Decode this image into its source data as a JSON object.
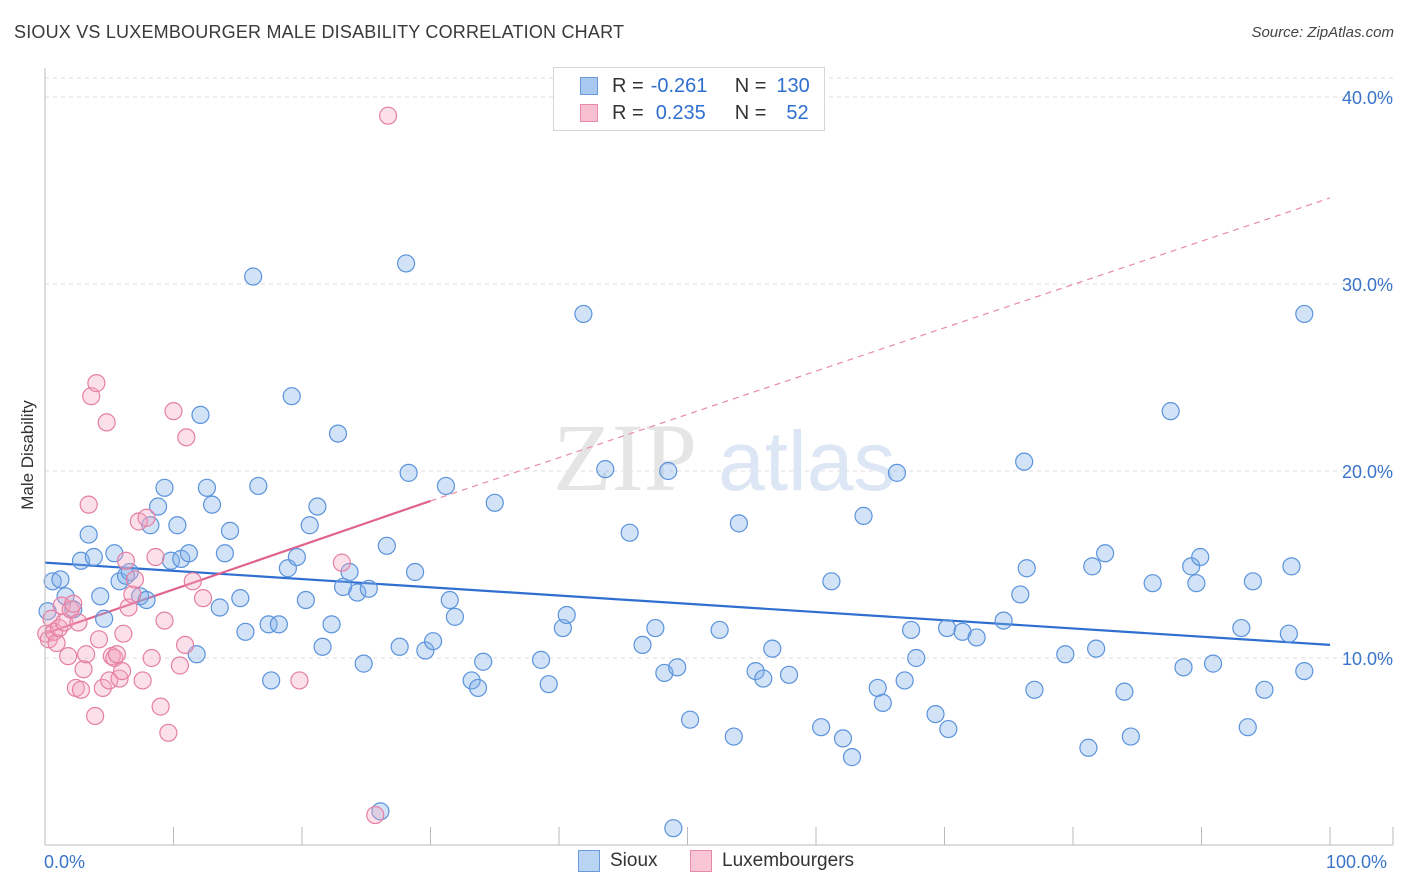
{
  "title": "SIOUX VS LUXEMBOURGER MALE DISABILITY CORRELATION CHART",
  "source": "Source: ZipAtlas.com",
  "watermark": {
    "zip": "ZIP",
    "atlas": "atlas"
  },
  "legend": {
    "rows": [
      {
        "r_label": "R =",
        "r_value": "-0.261",
        "n_label": "N =",
        "n_value": "130",
        "color": "#a9c8f0",
        "border": "#6a9bd8"
      },
      {
        "r_label": "R =",
        "r_value": "0.235",
        "n_label": "N =",
        "n_value": "52",
        "color": "#f7bfd0",
        "border": "#e58aa8"
      }
    ]
  },
  "bottom_legend": [
    {
      "label": "Sioux",
      "color": "#b9d3f3",
      "border": "#6a9bd8"
    },
    {
      "label": "Luxembourgers",
      "color": "#f9c6d6",
      "border": "#e58aa8"
    }
  ],
  "chart_data": {
    "type": "scatter",
    "title": "SIOUX VS LUXEMBOURGER MALE DISABILITY CORRELATION CHART",
    "xlabel": "",
    "ylabel": "Male Disability",
    "xlim": [
      0,
      100
    ],
    "ylim": [
      0,
      40
    ],
    "x_tick_labels": [
      "0.0%",
      "100.0%"
    ],
    "y_ticks": [
      10,
      20,
      30,
      40
    ],
    "y_tick_labels": [
      "10.0%",
      "20.0%",
      "30.0%",
      "40.0%"
    ],
    "grid": true,
    "series": [
      {
        "name": "Sioux",
        "color": "#7eaee9",
        "stroke": "#5b93dc",
        "trend": {
          "x0": 0,
          "y0": 15.1,
          "x1": 100,
          "y1": 10.7
        },
        "points": [
          [
            0.2,
            12.5
          ],
          [
            0.6,
            14.1
          ],
          [
            1.2,
            14.2
          ],
          [
            1.6,
            13.3
          ],
          [
            2.2,
            12.6
          ],
          [
            2.8,
            15.2
          ],
          [
            3.4,
            16.6
          ],
          [
            3.8,
            15.4
          ],
          [
            4.3,
            13.3
          ],
          [
            4.6,
            12.1
          ],
          [
            5.4,
            15.6
          ],
          [
            5.8,
            14.1
          ],
          [
            6.3,
            14.4
          ],
          [
            6.6,
            14.6
          ],
          [
            7.4,
            13.3
          ],
          [
            7.9,
            13.1
          ],
          [
            8.2,
            17.1
          ],
          [
            8.8,
            18.1
          ],
          [
            9.3,
            19.1
          ],
          [
            9.8,
            15.2
          ],
          [
            10.3,
            17.1
          ],
          [
            10.6,
            15.3
          ],
          [
            11.2,
            15.6
          ],
          [
            11.8,
            10.2
          ],
          [
            12.1,
            23.0
          ],
          [
            12.6,
            19.1
          ],
          [
            13.0,
            18.2
          ],
          [
            13.6,
            12.7
          ],
          [
            14.0,
            15.6
          ],
          [
            14.4,
            16.8
          ],
          [
            15.2,
            13.2
          ],
          [
            15.6,
            11.4
          ],
          [
            16.2,
            30.4
          ],
          [
            16.6,
            19.2
          ],
          [
            17.4,
            11.8
          ],
          [
            17.6,
            8.8
          ],
          [
            18.2,
            11.8
          ],
          [
            18.9,
            14.8
          ],
          [
            19.2,
            24.0
          ],
          [
            19.6,
            15.4
          ],
          [
            20.3,
            13.1
          ],
          [
            20.6,
            17.1
          ],
          [
            21.2,
            18.1
          ],
          [
            21.6,
            10.6
          ],
          [
            22.3,
            11.8
          ],
          [
            22.8,
            22.0
          ],
          [
            23.2,
            13.8
          ],
          [
            23.7,
            14.6
          ],
          [
            24.3,
            13.5
          ],
          [
            24.8,
            9.7
          ],
          [
            25.2,
            13.7
          ],
          [
            26.1,
            1.8
          ],
          [
            26.6,
            16.0
          ],
          [
            27.6,
            10.6
          ],
          [
            28.1,
            31.1
          ],
          [
            28.3,
            19.9
          ],
          [
            28.8,
            14.6
          ],
          [
            29.6,
            10.4
          ],
          [
            30.2,
            10.9
          ],
          [
            31.2,
            19.2
          ],
          [
            31.5,
            13.1
          ],
          [
            31.9,
            12.2
          ],
          [
            33.2,
            8.8
          ],
          [
            33.7,
            8.4
          ],
          [
            34.1,
            9.8
          ],
          [
            35.0,
            18.3
          ],
          [
            38.6,
            9.9
          ],
          [
            39.2,
            8.6
          ],
          [
            40.3,
            11.6
          ],
          [
            40.6,
            12.3
          ],
          [
            41.9,
            28.4
          ],
          [
            43.6,
            20.1
          ],
          [
            45.5,
            16.7
          ],
          [
            46.5,
            10.7
          ],
          [
            47.5,
            11.6
          ],
          [
            48.2,
            9.2
          ],
          [
            48.5,
            20.0
          ],
          [
            48.9,
            0.9
          ],
          [
            49.2,
            9.5
          ],
          [
            50.2,
            6.7
          ],
          [
            52.5,
            11.5
          ],
          [
            53.6,
            5.8
          ],
          [
            54.0,
            17.2
          ],
          [
            55.3,
            9.3
          ],
          [
            55.9,
            8.9
          ],
          [
            56.6,
            10.5
          ],
          [
            57.9,
            9.1
          ],
          [
            60.4,
            6.3
          ],
          [
            61.2,
            14.1
          ],
          [
            62.1,
            5.7
          ],
          [
            62.8,
            4.7
          ],
          [
            63.7,
            17.6
          ],
          [
            64.8,
            8.4
          ],
          [
            65.2,
            7.6
          ],
          [
            66.3,
            19.9
          ],
          [
            66.9,
            8.8
          ],
          [
            67.4,
            11.5
          ],
          [
            67.8,
            10.0
          ],
          [
            69.3,
            7.0
          ],
          [
            70.2,
            11.6
          ],
          [
            70.3,
            6.2
          ],
          [
            71.4,
            11.4
          ],
          [
            72.5,
            11.1
          ],
          [
            74.6,
            12.0
          ],
          [
            75.9,
            13.4
          ],
          [
            76.2,
            20.5
          ],
          [
            76.4,
            14.8
          ],
          [
            77.0,
            8.3
          ],
          [
            79.4,
            10.2
          ],
          [
            81.2,
            5.2
          ],
          [
            81.5,
            14.9
          ],
          [
            81.8,
            10.5
          ],
          [
            82.5,
            15.6
          ],
          [
            84.0,
            8.2
          ],
          [
            84.5,
            5.8
          ],
          [
            86.2,
            14.0
          ],
          [
            87.6,
            23.2
          ],
          [
            88.6,
            9.5
          ],
          [
            89.2,
            14.9
          ],
          [
            89.6,
            14.0
          ],
          [
            89.9,
            15.4
          ],
          [
            90.9,
            9.7
          ],
          [
            93.1,
            11.6
          ],
          [
            93.6,
            6.3
          ],
          [
            94.0,
            14.1
          ],
          [
            94.9,
            8.3
          ],
          [
            96.8,
            11.3
          ],
          [
            97.0,
            14.9
          ],
          [
            98.0,
            28.4
          ],
          [
            98.0,
            9.3
          ]
        ]
      },
      {
        "name": "Luxembourgers",
        "color": "#f4a6c0",
        "stroke": "#e57fa3",
        "trend": {
          "x0": 0,
          "y0": 11.3,
          "x1": 30,
          "y1": 18.4
        },
        "trend_extended": {
          "x0": 30,
          "y0": 18.4,
          "x1": 100,
          "y1": 34.6
        },
        "points": [
          [
            0.1,
            11.3
          ],
          [
            0.3,
            11.0
          ],
          [
            0.5,
            12.1
          ],
          [
            0.7,
            11.4
          ],
          [
            0.9,
            10.8
          ],
          [
            1.1,
            11.6
          ],
          [
            1.3,
            12.8
          ],
          [
            1.5,
            11.9
          ],
          [
            1.8,
            10.1
          ],
          [
            2.0,
            12.6
          ],
          [
            2.2,
            12.9
          ],
          [
            2.4,
            8.4
          ],
          [
            2.6,
            11.9
          ],
          [
            2.8,
            8.3
          ],
          [
            3.0,
            9.4
          ],
          [
            3.2,
            10.2
          ],
          [
            3.4,
            18.2
          ],
          [
            3.6,
            24.0
          ],
          [
            3.9,
            6.9
          ],
          [
            4.0,
            24.7
          ],
          [
            4.2,
            11.0
          ],
          [
            4.5,
            8.4
          ],
          [
            4.8,
            22.6
          ],
          [
            5.0,
            8.8
          ],
          [
            5.2,
            10.1
          ],
          [
            5.4,
            10.0
          ],
          [
            5.6,
            10.2
          ],
          [
            5.8,
            8.9
          ],
          [
            6.0,
            9.3
          ],
          [
            6.1,
            11.3
          ],
          [
            6.3,
            15.2
          ],
          [
            6.5,
            12.7
          ],
          [
            6.8,
            13.4
          ],
          [
            7.0,
            14.2
          ],
          [
            7.3,
            17.3
          ],
          [
            7.6,
            8.8
          ],
          [
            7.9,
            17.5
          ],
          [
            8.3,
            10.0
          ],
          [
            8.6,
            15.4
          ],
          [
            9.0,
            7.4
          ],
          [
            9.3,
            12.0
          ],
          [
            9.6,
            6.0
          ],
          [
            10.0,
            23.2
          ],
          [
            10.5,
            9.6
          ],
          [
            10.9,
            10.7
          ],
          [
            11.0,
            21.8
          ],
          [
            11.5,
            14.1
          ],
          [
            12.3,
            13.2
          ],
          [
            19.8,
            8.8
          ],
          [
            23.1,
            15.1
          ],
          [
            26.7,
            39.0
          ],
          [
            25.7,
            1.6
          ]
        ]
      }
    ]
  }
}
